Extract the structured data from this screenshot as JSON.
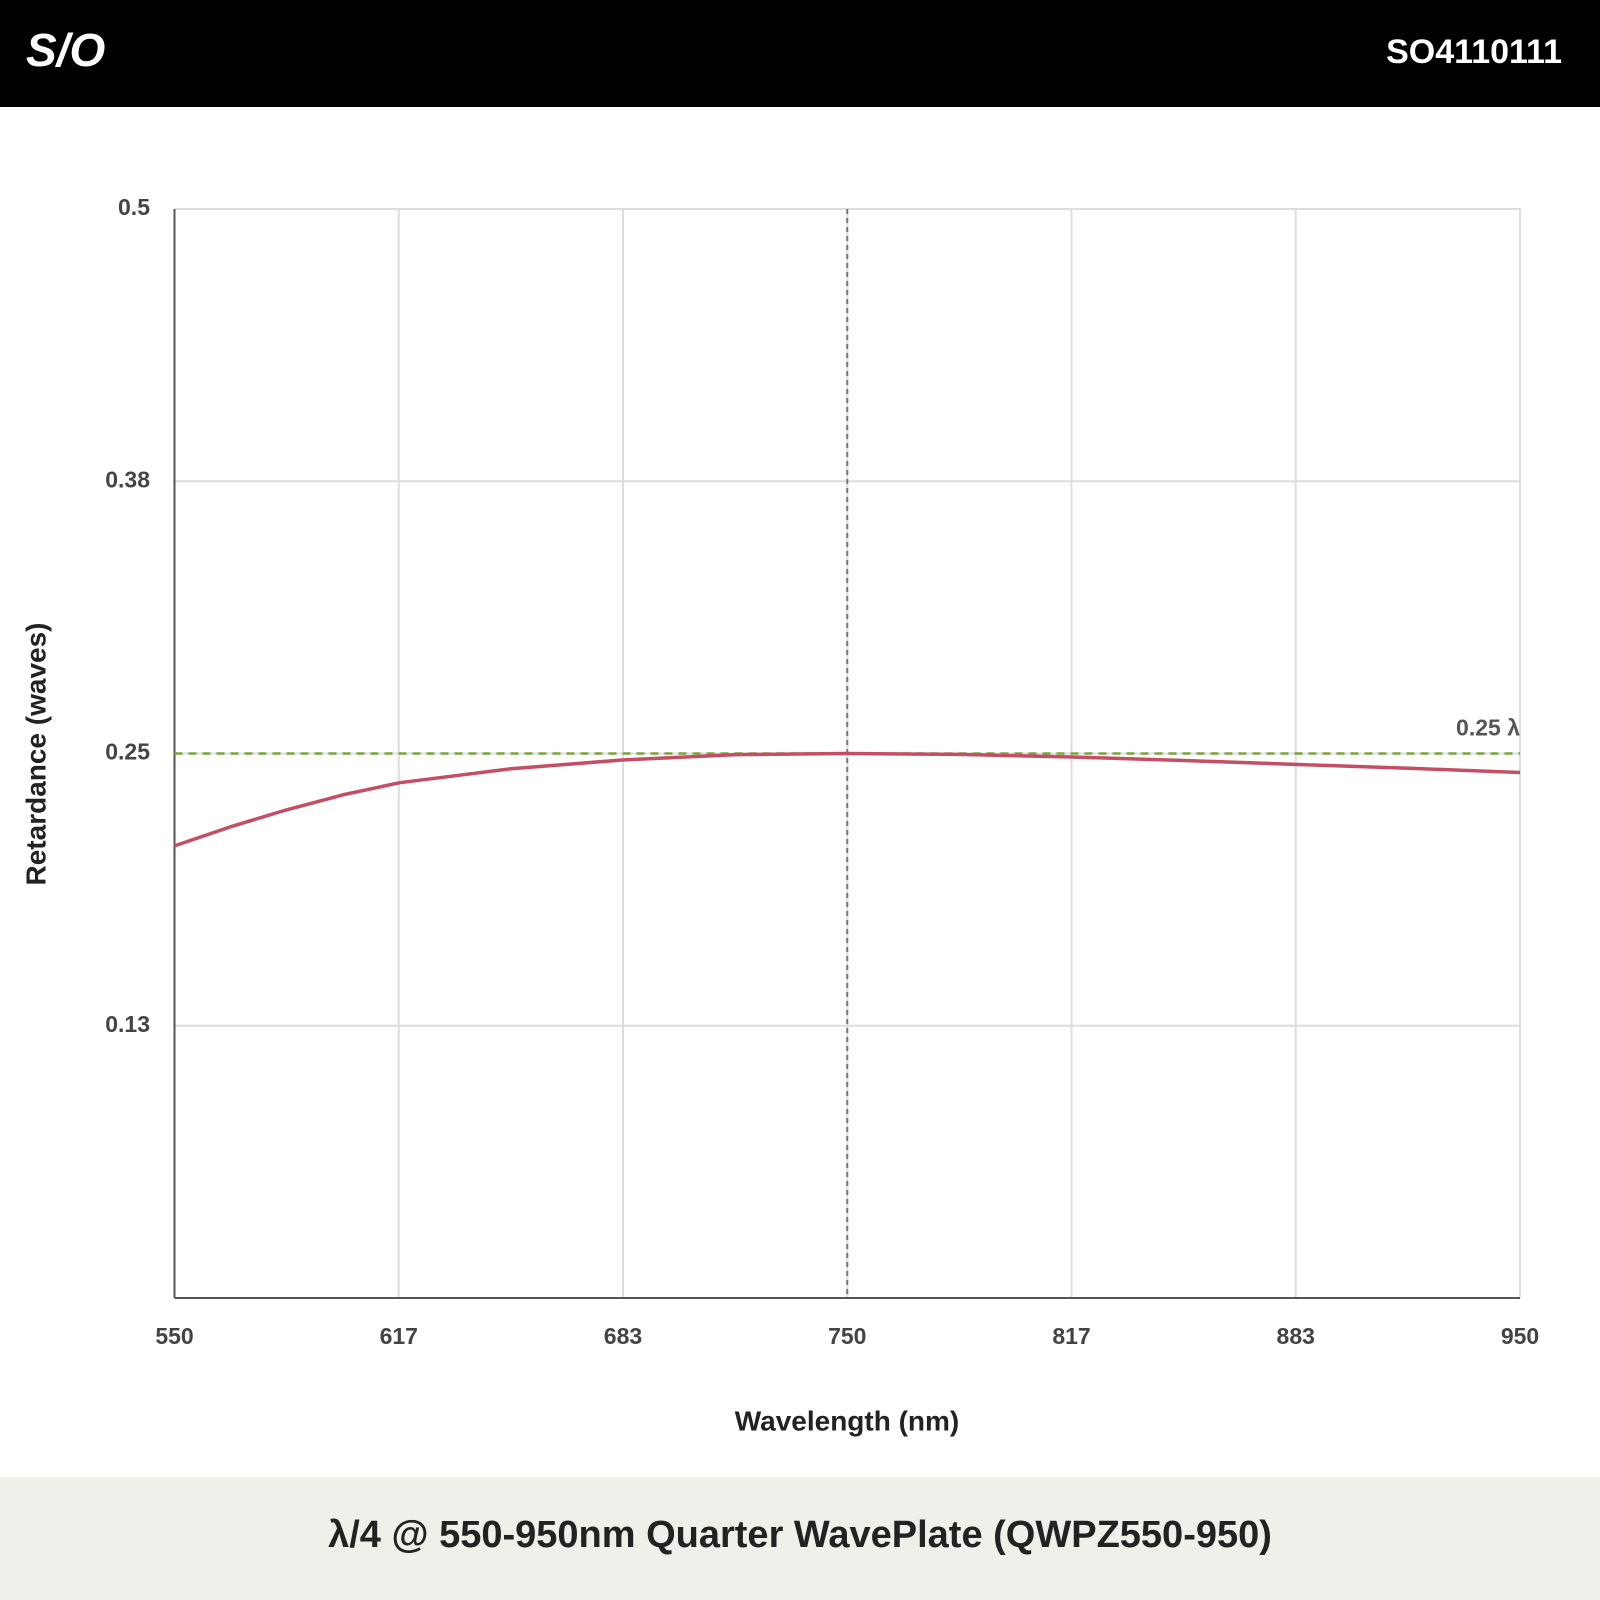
{
  "header": {
    "logo": "S/O",
    "code": "SO4110111"
  },
  "chart_data": {
    "type": "line",
    "title": "λ/4 @ 550-950nm Quarter WavePlate (QWPZ550-950)",
    "xlabel": "Wavelength (nm)",
    "ylabel": "Retardance (waves)",
    "x": [
      550,
      567,
      583,
      600,
      617,
      650,
      683,
      717,
      750,
      783,
      817,
      850,
      883,
      917,
      950
    ],
    "series": [
      {
        "color": "#c44e63",
        "values": [
          0.2076,
          0.2165,
          0.224,
          0.231,
          0.2366,
          0.243,
          0.247,
          0.2495,
          0.25,
          0.2496,
          0.2484,
          0.2468,
          0.245,
          0.2432,
          0.2413
        ]
      }
    ],
    "xlim": [
      550,
      950
    ],
    "xticks": [
      550,
      {
        "value": 616.667,
        "label": "617"
      },
      {
        "value": 683.333,
        "label": "683"
      },
      750,
      {
        "value": 816.667,
        "label": "817"
      },
      {
        "value": 883.333,
        "label": "883"
      },
      950
    ],
    "ylim": [
      0,
      0.5
    ],
    "yticks": [
      {
        "value": 0.125,
        "label": "0.13"
      },
      0.25,
      {
        "value": 0.375,
        "label": "0.38"
      },
      0.5
    ],
    "grid": true,
    "reference_lines": [
      {
        "axis": "y",
        "value": 0.25,
        "label": "0.25 λ",
        "color": "#7aa33a"
      },
      {
        "axis": "x",
        "value": 750,
        "color": "#777777"
      }
    ]
  }
}
